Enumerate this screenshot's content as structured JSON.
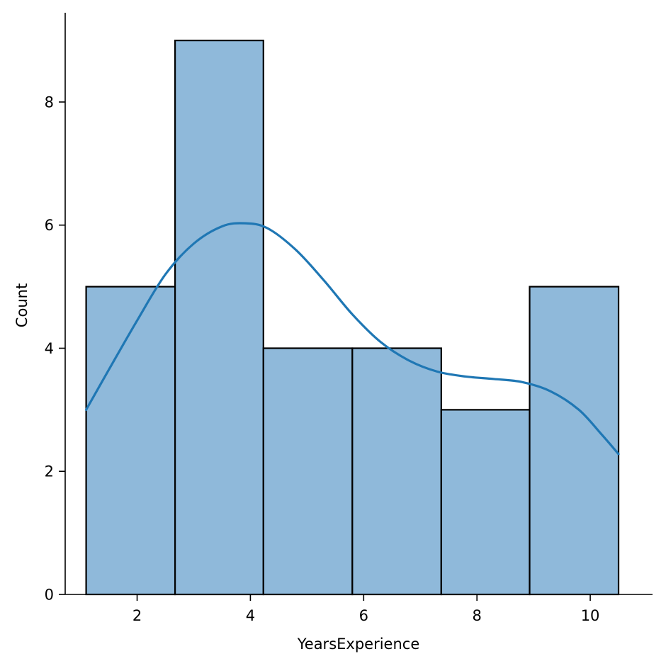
{
  "chart_data": {
    "type": "bar",
    "subtype": "histogram-with-kde",
    "xlabel": "YearsExperience",
    "ylabel": "Count",
    "xlim": [
      0.73,
      11.1
    ],
    "ylim": [
      0,
      9.45
    ],
    "grid": false,
    "legend": "none",
    "x_ticks": [
      2,
      4,
      6,
      8,
      10
    ],
    "y_ticks": [
      0,
      2,
      4,
      6,
      8
    ],
    "bins": [
      {
        "x0": 1.1,
        "x1": 2.67,
        "count": 5
      },
      {
        "x0": 2.67,
        "x1": 4.23,
        "count": 9
      },
      {
        "x0": 4.23,
        "x1": 5.8,
        "count": 4
      },
      {
        "x0": 5.8,
        "x1": 7.37,
        "count": 4
      },
      {
        "x0": 7.37,
        "x1": 8.93,
        "count": 3
      },
      {
        "x0": 8.93,
        "x1": 10.5,
        "count": 5
      }
    ],
    "kde": {
      "x": [
        1.1,
        1.5,
        2.0,
        2.5,
        3.0,
        3.5,
        3.9,
        4.3,
        4.8,
        5.3,
        5.8,
        6.3,
        6.8,
        7.3,
        7.8,
        8.3,
        8.8,
        9.3,
        9.8,
        10.2,
        10.5
      ],
      "y": [
        3.0,
        3.65,
        4.45,
        5.2,
        5.7,
        5.98,
        6.03,
        5.95,
        5.6,
        5.1,
        4.55,
        4.1,
        3.8,
        3.62,
        3.54,
        3.5,
        3.45,
        3.3,
        3.0,
        2.6,
        2.28
      ]
    },
    "colors": {
      "bar_fill": "#8fb9da",
      "bar_edge": "#000000",
      "kde_line": "#1f77b4"
    }
  }
}
